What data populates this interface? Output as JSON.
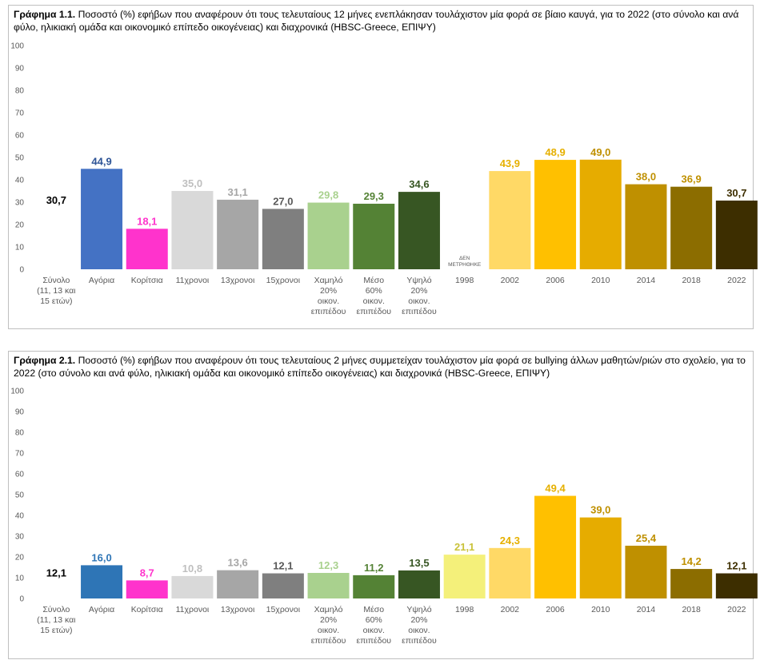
{
  "charts": [
    {
      "title_bold": "Γράφημα 1.1.",
      "title_text": " Ποσοστό (%) εφήβων που αναφέρουν ότι τους τελευταίους 12 μήνες ενεπλάκησαν τουλάχιστον μία φορά σε βίαιο καυγά, για το 2022 (στο σύνολο και ανά φύλο, ηλικιακή ομάδα και οικονομικό επίπεδο οικογένειας) και διαχρονικά (HBSC-Greece, ΕΠΙΨΥ)"
    },
    {
      "title_bold": "Γράφημα 2.1.",
      "title_text": " Ποσοστό (%) εφήβων που αναφέρουν ότι τους τελευταίους 2 μήνες συμμετείχαν τουλάχιστον μία φορά σε bullying άλλων μαθητών/ριών στο σχολείο, για το 2022 (στο σύνολο και ανά φύλο, ηλικιακή ομάδα και οικονομικό επίπεδο οικογένειας) και διαχρονικά (HBSC-Greece, ΕΠΙΨΥ)"
    }
  ],
  "chart_data": [
    {
      "type": "bar",
      "title": "Γράφημα 1.1. Ποσοστό (%) εφήβων που αναφέρουν ότι τους τελευταίους 12 μήνες ενεπλάκησαν τουλάχιστον μία φορά σε βίαιο καυγά, για το 2022 (στο σύνολο και ανά φύλο, ηλικιακή ομάδα και οικονομικό επίπεδο οικογένειας) και διαχρονικά (HBSC-Greece, ΕΠΙΨΥ)",
      "ylim": [
        0,
        100
      ],
      "yticks": [
        0,
        10,
        20,
        30,
        40,
        50,
        60,
        70,
        80,
        90,
        100
      ],
      "grid": false,
      "categories": [
        [
          "Σύνολο",
          "(11, 13 και",
          "15 ετών)"
        ],
        [
          "Αγόρια"
        ],
        [
          "Κορίτσια"
        ],
        [
          "11χρονοι"
        ],
        [
          "13χρονοι"
        ],
        [
          "15χρονοι"
        ],
        [
          "Χαμηλό",
          "20%",
          "οικον.",
          "επιπέδου"
        ],
        [
          "Μέσο",
          "60%",
          "οικον.",
          "επιπέδου"
        ],
        [
          "Υψηλό",
          "20%",
          "οικον.",
          "επιπέδου"
        ],
        [
          "1998"
        ],
        [
          "2002"
        ],
        [
          "2006"
        ],
        [
          "2010"
        ],
        [
          "2014"
        ],
        [
          "2018"
        ],
        [
          "2022"
        ]
      ],
      "values": [
        30.7,
        44.9,
        18.1,
        35.0,
        31.1,
        27.0,
        29.8,
        29.3,
        34.6,
        null,
        43.9,
        48.9,
        49.0,
        38.0,
        36.9,
        30.7
      ],
      "value_labels": [
        "30,7",
        "44,9",
        "18,1",
        "35,0",
        "31,1",
        "27,0",
        "29,8",
        "29,3",
        "34,6",
        "",
        "43,9",
        "48,9",
        "49,0",
        "38,0",
        "36,9",
        "30,7"
      ],
      "bar_colors": [
        "none",
        "#4472C4",
        "#FF33CC",
        "#D9D9D9",
        "#A6A6A6",
        "#7F7F7F",
        "#A9D18E",
        "#548235",
        "#375623",
        "none",
        "#FFD966",
        "#FFC000",
        "#E6AC00",
        "#BF9000",
        "#8C6D00",
        "#3D2E00"
      ],
      "label_colors": [
        "#000000",
        "#2F5597",
        "#FF33CC",
        "#BFBFBF",
        "#A6A6A6",
        "#595959",
        "#A9D18E",
        "#548235",
        "#375623",
        "#000000",
        "#E6B000",
        "#E6B000",
        "#BF9000",
        "#BF9000",
        "#BF9000",
        "#3D2E00"
      ],
      "missing_note": [
        "ΔΕΝ",
        "ΜΕΤΡΗΘΗΚΕ"
      ]
    },
    {
      "type": "bar",
      "title": "Γράφημα 2.1. Ποσοστό (%) εφήβων που αναφέρουν ότι τους τελευταίους 2 μήνες συμμετείχαν τουλάχιστον μία φορά σε bullying άλλων μαθητών/ριών στο σχολείο, για το 2022 (στο σύνολο και ανά φύλο, ηλικιακή ομάδα και οικονομικό επίπεδο οικογένειας) και διαχρονικά (HBSC-Greece, ΕΠΙΨΥ)",
      "ylim": [
        0,
        100
      ],
      "yticks": [
        0,
        10,
        20,
        30,
        40,
        50,
        60,
        70,
        80,
        90,
        100
      ],
      "grid": false,
      "categories": [
        [
          "Σύνολο",
          "(11, 13 και",
          "15 ετών)"
        ],
        [
          "Αγόρια"
        ],
        [
          "Κορίτσια"
        ],
        [
          "11χρονοι"
        ],
        [
          "13χρονοι"
        ],
        [
          "15χρονοι"
        ],
        [
          "Χαμηλό",
          "20%",
          "οικον.",
          "επιπέδου"
        ],
        [
          "Μέσο",
          "60%",
          "οικον.",
          "επιπέδου"
        ],
        [
          "Υψηλό",
          "20%",
          "οικον.",
          "επιπέδου"
        ],
        [
          "1998"
        ],
        [
          "2002"
        ],
        [
          "2006"
        ],
        [
          "2010"
        ],
        [
          "2014"
        ],
        [
          "2018"
        ],
        [
          "2022"
        ]
      ],
      "values": [
        12.1,
        16.0,
        8.7,
        10.8,
        13.6,
        12.1,
        12.3,
        11.2,
        13.5,
        21.1,
        24.3,
        49.4,
        39.0,
        25.4,
        14.2,
        12.1
      ],
      "value_labels": [
        "12,1",
        "16,0",
        "8,7",
        "10,8",
        "13,6",
        "12,1",
        "12,3",
        "11,2",
        "13,5",
        "21,1",
        "24,3",
        "49,4",
        "39,0",
        "25,4",
        "14,2",
        "12,1"
      ],
      "bar_colors": [
        "none",
        "#2E75B6",
        "#FF33CC",
        "#D9D9D9",
        "#A6A6A6",
        "#7F7F7F",
        "#A9D18E",
        "#548235",
        "#375623",
        "#F4F07A",
        "#FFD966",
        "#FFC000",
        "#E6AC00",
        "#BF9000",
        "#8C6D00",
        "#3D2E00"
      ],
      "label_colors": [
        "#000000",
        "#2E75B6",
        "#FF33CC",
        "#BFBFBF",
        "#A6A6A6",
        "#595959",
        "#A9D18E",
        "#548235",
        "#375623",
        "#C9C23A",
        "#E6B000",
        "#E6B000",
        "#BF9000",
        "#BF9000",
        "#BF9000",
        "#3D2E00"
      ],
      "missing_note": []
    }
  ]
}
